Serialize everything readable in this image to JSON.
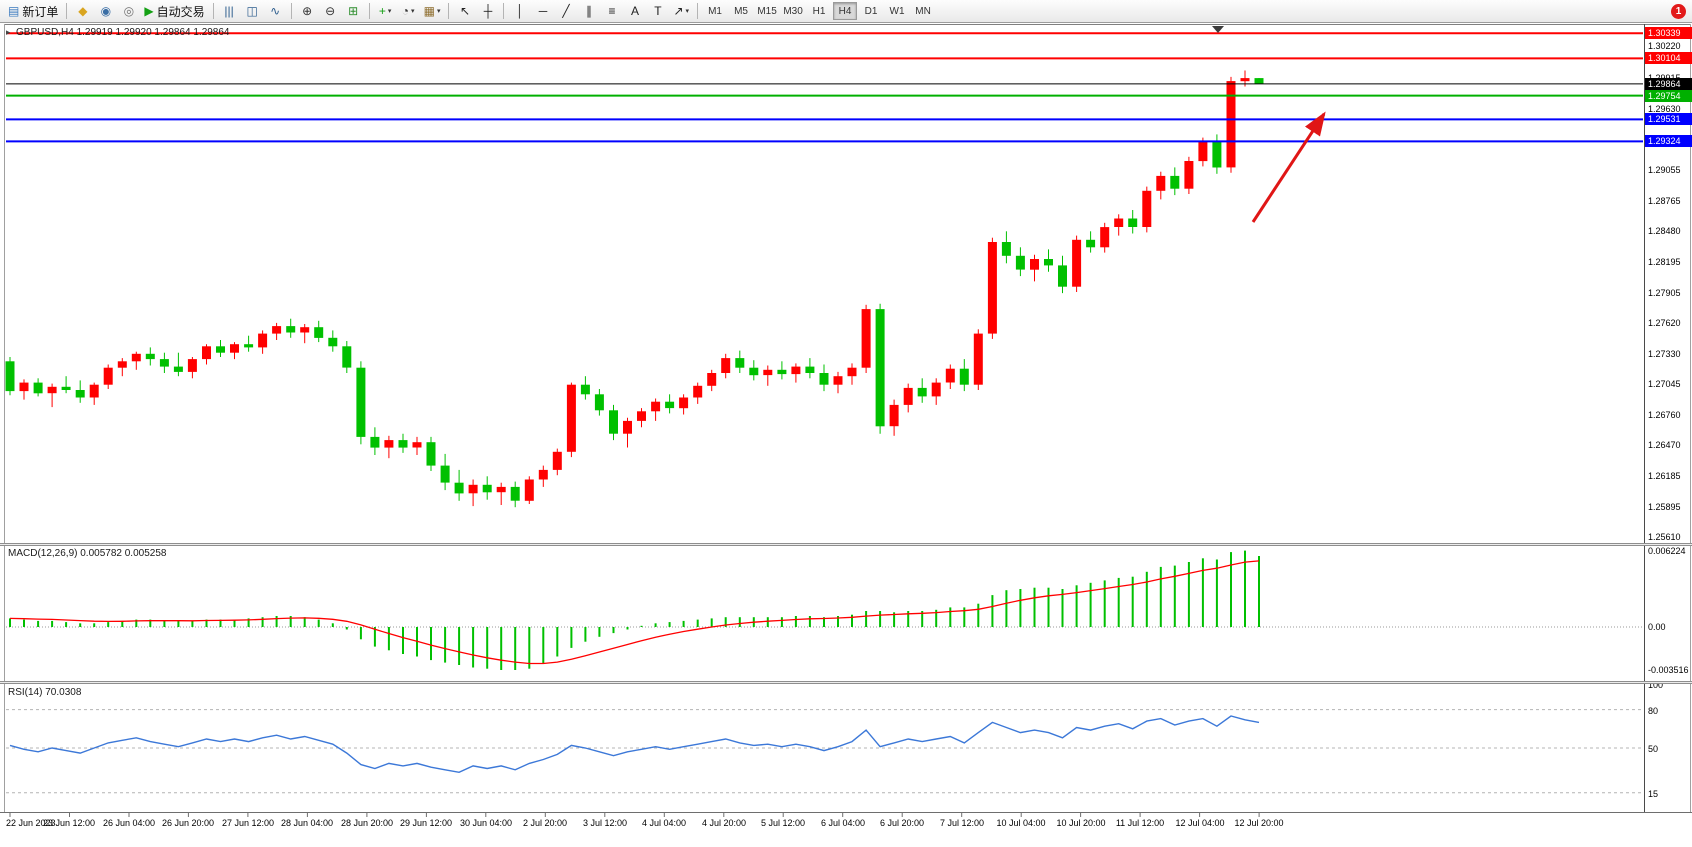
{
  "toolbar": {
    "groups": [
      {
        "items": [
          {
            "name": "new-order",
            "glyph": "▤",
            "color": "#3a7abf",
            "label": "新订单"
          }
        ]
      },
      {
        "items": [
          {
            "name": "metaeditor",
            "glyph": "◆",
            "color": "#d9a520"
          },
          {
            "name": "market-watch",
            "glyph": "◉",
            "color": "#3a6ea5"
          },
          {
            "name": "data-window",
            "glyph": "◎",
            "color": "#707070"
          },
          {
            "name": "autotrading",
            "glyph": "▶",
            "color": "#14a014",
            "label": "自动交易"
          }
        ]
      },
      {
        "items": [
          {
            "name": "bar-chart-mode",
            "glyph": "|||",
            "color": "#2e5e8e"
          },
          {
            "name": "candlestick-mode",
            "glyph": "◫",
            "color": "#2e5e8e"
          },
          {
            "name": "line-chart-mode",
            "glyph": "∿",
            "color": "#2e5e8e"
          }
        ]
      },
      {
        "items": [
          {
            "name": "zoom-in",
            "glyph": "⊕",
            "color": "#333333"
          },
          {
            "name": "zoom-out",
            "glyph": "⊖",
            "color": "#333333"
          },
          {
            "name": "tile-windows",
            "glyph": "⊞",
            "color": "#2e8e2e"
          }
        ]
      },
      {
        "items": [
          {
            "name": "indicators",
            "glyph": "+",
            "color": "#14a014",
            "caret": true
          },
          {
            "name": "periods",
            "glyph": "◔",
            "color": "#333333",
            "caret": true
          },
          {
            "name": "templates",
            "glyph": "▦",
            "color": "#8e6e2e",
            "caret": true
          }
        ]
      },
      {
        "items": [
          {
            "name": "cursor",
            "glyph": "↖",
            "color": "#222222"
          },
          {
            "name": "crosshair",
            "glyph": "┼",
            "color": "#222222"
          }
        ]
      },
      {
        "items": [
          {
            "name": "vertical-line",
            "glyph": "│",
            "color": "#222222"
          },
          {
            "name": "horizontal-line",
            "glyph": "─",
            "color": "#222222"
          },
          {
            "name": "trendline",
            "glyph": "╱",
            "color": "#222222"
          },
          {
            "name": "equidistant-channel",
            "glyph": "∥",
            "color": "#222222"
          },
          {
            "name": "fibonacci",
            "glyph": "≡",
            "color": "#222222"
          },
          {
            "name": "text-tool",
            "glyph": "A",
            "color": "#222222"
          },
          {
            "name": "label-tool",
            "glyph": "T",
            "color": "#222222"
          },
          {
            "name": "arrows-tool",
            "glyph": "↗",
            "color": "#222222",
            "caret": true
          }
        ]
      }
    ],
    "timeframes": [
      "M1",
      "M5",
      "M15",
      "M30",
      "H1",
      "H4",
      "D1",
      "W1",
      "MN"
    ],
    "active_timeframe": "H4",
    "notification_count": "1"
  },
  "chart": {
    "one_click_glyph": "▸"
  },
  "colors": {
    "candle_up": "#ff0000",
    "candle_down": "#00c000",
    "macd_hist": "#00c000",
    "macd_signal": "#ff0000",
    "rsi_line": "#3c78d8",
    "arrow": "#e01616"
  },
  "chart_data": [
    {
      "type": "candlestick",
      "symbol": "GBPUSD",
      "timeframe": "H4",
      "title": "GBPUSD,H4 1.29919 1.29920 1.29864 1.29864",
      "ylim": [
        1.2555,
        1.3042
      ],
      "yticks": [
        {
          "value": 1.3022,
          "label": "1.30220"
        },
        {
          "value": 1.29915,
          "label": "1.29915"
        },
        {
          "value": 1.2963,
          "label": "1.29630"
        },
        {
          "value": 1.2934,
          "label": "1.29340"
        },
        {
          "value": 1.29055,
          "label": "1.29055"
        },
        {
          "value": 1.28765,
          "label": "1.28765"
        },
        {
          "value": 1.2848,
          "label": "1.28480"
        },
        {
          "value": 1.28195,
          "label": "1.28195"
        },
        {
          "value": 1.27905,
          "label": "1.27905"
        },
        {
          "value": 1.2762,
          "label": "1.27620"
        },
        {
          "value": 1.2733,
          "label": "1.27330"
        },
        {
          "value": 1.27045,
          "label": "1.27045"
        },
        {
          "value": 1.2676,
          "label": "1.26760"
        },
        {
          "value": 1.2647,
          "label": "1.26470"
        },
        {
          "value": 1.26185,
          "label": "1.26185"
        },
        {
          "value": 1.25895,
          "label": "1.25895"
        },
        {
          "value": 1.2561,
          "label": "1.25610"
        }
      ],
      "hlines": [
        {
          "price": 1.30339,
          "label": "1.30339",
          "color": "#ff0000",
          "width": 2
        },
        {
          "price": 1.30104,
          "label": "1.30104",
          "color": "#ff0000",
          "width": 2
        },
        {
          "price": 1.29864,
          "label": "1.29864",
          "color": "#000000",
          "width": 1
        },
        {
          "price": 1.29754,
          "label": "1.29754",
          "color": "#00b000",
          "width": 2
        },
        {
          "price": 1.29531,
          "label": "1.29531",
          "color": "#0000ff",
          "width": 2
        },
        {
          "price": 1.29324,
          "label": "1.29324",
          "color": "#0000ff",
          "width": 2
        }
      ],
      "xlabels": [
        "22 Jun 2023",
        "23 Jun 12:00",
        "26 Jun 04:00",
        "26 Jun 20:00",
        "27 Jun 12:00",
        "28 Jun 04:00",
        "28 Jun 20:00",
        "29 Jun 12:00",
        "30 Jun 04:00",
        "2 Jul 20:00",
        "3 Jul 12:00",
        "4 Jul 04:00",
        "4 Jul 20:00",
        "5 Jul 12:00",
        "6 Jul 04:00",
        "6 Jul 20:00",
        "7 Jul 12:00",
        "10 Jul 04:00",
        "10 Jul 20:00",
        "11 Jul 12:00",
        "12 Jul 04:00",
        "12 Jul 20:00"
      ],
      "ohlc": [
        [
          1.2726,
          1.273,
          1.2694,
          1.2698
        ],
        [
          1.2698,
          1.2709,
          1.269,
          1.2706
        ],
        [
          1.2706,
          1.271,
          1.2693,
          1.2696
        ],
        [
          1.2696,
          1.2705,
          1.2683,
          1.2702
        ],
        [
          1.2702,
          1.2712,
          1.2696,
          1.2699
        ],
        [
          1.2699,
          1.2708,
          1.2687,
          1.2692
        ],
        [
          1.2692,
          1.2706,
          1.2685,
          1.2704
        ],
        [
          1.2704,
          1.2723,
          1.27,
          1.272
        ],
        [
          1.272,
          1.2729,
          1.2712,
          1.2726
        ],
        [
          1.2726,
          1.2735,
          1.2718,
          1.2733
        ],
        [
          1.2733,
          1.2739,
          1.2722,
          1.2728
        ],
        [
          1.2728,
          1.2734,
          1.2715,
          1.2721
        ],
        [
          1.2721,
          1.2734,
          1.2712,
          1.2716
        ],
        [
          1.2716,
          1.273,
          1.271,
          1.2728
        ],
        [
          1.2728,
          1.2742,
          1.2723,
          1.274
        ],
        [
          1.274,
          1.2746,
          1.273,
          1.2734
        ],
        [
          1.2734,
          1.2744,
          1.2728,
          1.2742
        ],
        [
          1.2742,
          1.275,
          1.2735,
          1.2739
        ],
        [
          1.2739,
          1.2755,
          1.2733,
          1.2752
        ],
        [
          1.2752,
          1.2762,
          1.2746,
          1.2759
        ],
        [
          1.2759,
          1.2766,
          1.2748,
          1.2753
        ],
        [
          1.2753,
          1.2761,
          1.2743,
          1.2758
        ],
        [
          1.2758,
          1.2764,
          1.2744,
          1.2748
        ],
        [
          1.2748,
          1.2755,
          1.2735,
          1.274
        ],
        [
          1.274,
          1.2745,
          1.2715,
          1.272
        ],
        [
          1.272,
          1.2726,
          1.2648,
          1.2655
        ],
        [
          1.2655,
          1.2664,
          1.2638,
          1.2645
        ],
        [
          1.2645,
          1.2656,
          1.2635,
          1.2652
        ],
        [
          1.2652,
          1.2658,
          1.264,
          1.2645
        ],
        [
          1.2645,
          1.2655,
          1.2638,
          1.265
        ],
        [
          1.265,
          1.2655,
          1.2623,
          1.2628
        ],
        [
          1.2628,
          1.2639,
          1.2605,
          1.2612
        ],
        [
          1.2612,
          1.2624,
          1.2595,
          1.2602
        ],
        [
          1.2602,
          1.2615,
          1.259,
          1.261
        ],
        [
          1.261,
          1.2618,
          1.2596,
          1.2603
        ],
        [
          1.2603,
          1.2612,
          1.2591,
          1.2608
        ],
        [
          1.2608,
          1.2613,
          1.2589,
          1.2595
        ],
        [
          1.2595,
          1.2618,
          1.2592,
          1.2615
        ],
        [
          1.2615,
          1.2628,
          1.2608,
          1.2624
        ],
        [
          1.2624,
          1.2644,
          1.2619,
          1.2641
        ],
        [
          1.2641,
          1.2706,
          1.2636,
          1.2704
        ],
        [
          1.2704,
          1.2712,
          1.269,
          1.2695
        ],
        [
          1.2695,
          1.27,
          1.2675,
          1.268
        ],
        [
          1.268,
          1.2685,
          1.2652,
          1.2658
        ],
        [
          1.2658,
          1.2673,
          1.2645,
          1.267
        ],
        [
          1.267,
          1.2682,
          1.2664,
          1.2679
        ],
        [
          1.2679,
          1.2691,
          1.267,
          1.2688
        ],
        [
          1.2688,
          1.2695,
          1.2677,
          1.2682
        ],
        [
          1.2682,
          1.2695,
          1.2676,
          1.2692
        ],
        [
          1.2692,
          1.2706,
          1.2686,
          1.2703
        ],
        [
          1.2703,
          1.2718,
          1.2698,
          1.2715
        ],
        [
          1.2715,
          1.2733,
          1.271,
          1.2729
        ],
        [
          1.2729,
          1.2736,
          1.2715,
          1.272
        ],
        [
          1.272,
          1.2727,
          1.2708,
          1.2713
        ],
        [
          1.2713,
          1.2722,
          1.2703,
          1.2718
        ],
        [
          1.2718,
          1.2726,
          1.2709,
          1.2714
        ],
        [
          1.2714,
          1.2724,
          1.2706,
          1.2721
        ],
        [
          1.2721,
          1.2729,
          1.271,
          1.2715
        ],
        [
          1.2715,
          1.2723,
          1.2698,
          1.2704
        ],
        [
          1.2704,
          1.2716,
          1.2696,
          1.2712
        ],
        [
          1.2712,
          1.2724,
          1.2704,
          1.272
        ],
        [
          1.272,
          1.2779,
          1.2715,
          1.2775
        ],
        [
          1.2775,
          1.278,
          1.2658,
          1.2665
        ],
        [
          1.2665,
          1.269,
          1.2656,
          1.2685
        ],
        [
          1.2685,
          1.2705,
          1.2678,
          1.2701
        ],
        [
          1.2701,
          1.271,
          1.2687,
          1.2693
        ],
        [
          1.2693,
          1.271,
          1.2685,
          1.2706
        ],
        [
          1.2706,
          1.2723,
          1.27,
          1.2719
        ],
        [
          1.2719,
          1.2728,
          1.2698,
          1.2704
        ],
        [
          1.2704,
          1.2756,
          1.2699,
          1.2752
        ],
        [
          1.2752,
          1.2842,
          1.2747,
          1.2838
        ],
        [
          1.2838,
          1.2848,
          1.2818,
          1.2825
        ],
        [
          1.2825,
          1.2833,
          1.2806,
          1.2812
        ],
        [
          1.2812,
          1.2826,
          1.2801,
          1.2822
        ],
        [
          1.2822,
          1.2831,
          1.281,
          1.2816
        ],
        [
          1.2816,
          1.2825,
          1.279,
          1.2796
        ],
        [
          1.2796,
          1.2844,
          1.2791,
          1.284
        ],
        [
          1.284,
          1.2848,
          1.2828,
          1.2833
        ],
        [
          1.2833,
          1.2856,
          1.2828,
          1.2852
        ],
        [
          1.2852,
          1.2864,
          1.2844,
          1.286
        ],
        [
          1.286,
          1.2868,
          1.2846,
          1.2852
        ],
        [
          1.2852,
          1.289,
          1.2847,
          1.2886
        ],
        [
          1.2886,
          1.2904,
          1.2878,
          1.29
        ],
        [
          1.29,
          1.2908,
          1.2882,
          1.2888
        ],
        [
          1.2888,
          1.2918,
          1.2883,
          1.2914
        ],
        [
          1.2914,
          1.2936,
          1.2909,
          1.2932
        ],
        [
          1.2932,
          1.2939,
          1.2902,
          1.2908
        ],
        [
          1.2908,
          1.2993,
          1.2903,
          1.2989
        ],
        [
          1.2989,
          1.2999,
          1.2984,
          1.29919
        ],
        [
          1.29919,
          1.2992,
          1.29864,
          1.29864
        ]
      ]
    },
    {
      "type": "bar",
      "name": "MACD",
      "title": "MACD(12,26,9) 0.005782 0.005258",
      "ylim": [
        -0.0044,
        0.0066
      ],
      "yticks": [
        {
          "value": 0.006224,
          "label": "0.006224"
        },
        {
          "value": 0,
          "label": "0.00"
        },
        {
          "value": -0.003516,
          "label": "-0.003516"
        }
      ],
      "values": [
        0.0007,
        0.0006,
        0.0005,
        0.0005,
        0.0004,
        0.0003,
        0.0003,
        0.0004,
        0.0005,
        0.0006,
        0.0006,
        0.0005,
        0.0005,
        0.0005,
        0.0006,
        0.0006,
        0.0006,
        0.0007,
        0.0008,
        0.0009,
        0.0009,
        0.0008,
        0.0006,
        0.0003,
        -0.0002,
        -0.001,
        -0.0016,
        -0.0019,
        -0.0022,
        -0.0024,
        -0.0027,
        -0.0029,
        -0.0031,
        -0.0033,
        -0.0034,
        -0.0035,
        -0.0035,
        -0.0034,
        -0.003,
        -0.0024,
        -0.0017,
        -0.0012,
        -0.0008,
        -0.0005,
        -0.0002,
        0.0001,
        0.0003,
        0.0004,
        0.0005,
        0.0006,
        0.0007,
        0.0008,
        0.0008,
        0.0008,
        0.0008,
        0.0008,
        0.0009,
        0.0009,
        0.0008,
        0.0009,
        0.001,
        0.0013,
        0.0013,
        0.0012,
        0.0013,
        0.0013,
        0.0014,
        0.0016,
        0.0016,
        0.0019,
        0.0026,
        0.003,
        0.0031,
        0.0032,
        0.0032,
        0.0031,
        0.0034,
        0.0036,
        0.0038,
        0.004,
        0.0041,
        0.0045,
        0.0049,
        0.005,
        0.0053,
        0.0056,
        0.0055,
        0.0061,
        0.006224,
        0.005782
      ]
    },
    {
      "type": "line",
      "name": "RSI",
      "title": "RSI(14) 70.0308",
      "ylim": [
        0,
        100
      ],
      "levels": [
        80,
        50,
        15
      ],
      "yticks": [
        {
          "value": 100,
          "label": "100"
        },
        {
          "value": 80,
          "label": "80"
        },
        {
          "value": 50,
          "label": "50"
        },
        {
          "value": 15,
          "label": "15"
        }
      ],
      "values": [
        52,
        49,
        47,
        50,
        48,
        46,
        50,
        54,
        56,
        58,
        55,
        53,
        51,
        54,
        57,
        55,
        57,
        55,
        58,
        60,
        57,
        59,
        56,
        53,
        46,
        37,
        34,
        38,
        36,
        38,
        35,
        33,
        31,
        36,
        34,
        36,
        33,
        38,
        41,
        45,
        52,
        50,
        47,
        44,
        47,
        49,
        51,
        49,
        51,
        53,
        55,
        57,
        54,
        52,
        53,
        51,
        53,
        51,
        48,
        51,
        55,
        64,
        51,
        54,
        57,
        55,
        57,
        59,
        54,
        62,
        70,
        66,
        62,
        64,
        62,
        58,
        66,
        64,
        67,
        69,
        65,
        71,
        73,
        68,
        71,
        73,
        67,
        75,
        72,
        70.03
      ]
    }
  ]
}
